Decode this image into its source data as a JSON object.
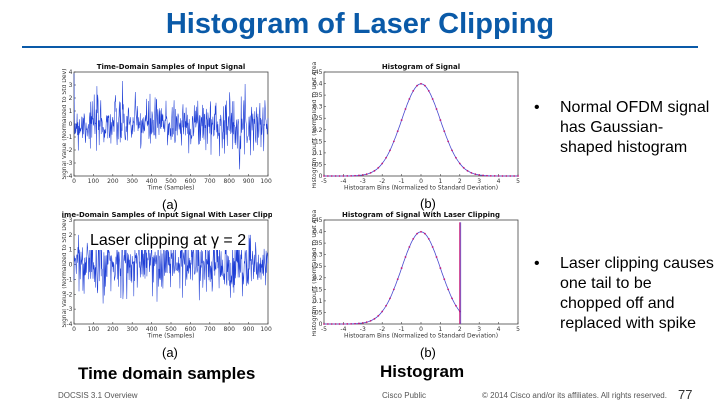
{
  "slide": {
    "title": "Histogram of Laser Clipping",
    "page_number": "77",
    "footer_left": "DOCSIS 3.1 Overview",
    "footer_center": "Cisco Public",
    "footer_right": "© 2014 Cisco and/or its affiliates. All rights reserved."
  },
  "labels": {
    "a_top": "(a)",
    "b_top": "(b)",
    "a_bottom": "(a)",
    "b_bottom": "(b)",
    "clipping_overlay": "Laser clipping at γ = 2",
    "caption_time": "Time domain samples",
    "caption_hist": "Histogram"
  },
  "bullets": [
    {
      "symbol": "•",
      "text": "Normal OFDM signal has Gaussian-shaped histogram"
    },
    {
      "symbol": "•",
      "text": "Laser clipping causes one tail to be chopped off and replaced with spike"
    }
  ],
  "chart_data": [
    {
      "type": "line",
      "title": "Time-Domain Samples of Input Signal",
      "xlabel": "Time (Samples)",
      "ylabel": "Signal Value (Normalized to Std Dev)",
      "xlim": [
        0,
        1000
      ],
      "ylim": [
        -4,
        4
      ],
      "x_ticks": [
        "0",
        "100",
        "200",
        "300",
        "400",
        "500",
        "600",
        "700",
        "800",
        "900",
        "1000"
      ],
      "y_ticks": [
        "-4",
        "-3",
        "-2",
        "-1",
        "0",
        "1",
        "2",
        "3",
        "4"
      ],
      "color": "#1f3fd6",
      "clip_at": null,
      "seed": 7
    },
    {
      "type": "line",
      "title": "Histogram of Signal",
      "xlabel": "Histogram Bins (Normalized to Standard Deviation)",
      "ylabel": "Histogram Count (Normalized to Unit Area)",
      "xlim": [
        -5,
        5
      ],
      "ylim": [
        0,
        0.45
      ],
      "x_ticks": [
        "-5",
        "-4",
        "-3",
        "-2",
        "-1",
        "0",
        "1",
        "2",
        "3",
        "4",
        "5"
      ],
      "y_ticks": [
        "0",
        "0.05",
        "0.1",
        "0.15",
        "0.2",
        "0.25",
        "0.3",
        "0.35",
        "0.4",
        "0.45"
      ],
      "color": "#c21a7a",
      "spike_at": null
    },
    {
      "type": "line",
      "title": "Time-Domain Samples of Input Signal With Laser Clipping",
      "xlabel": "Time (Samples)",
      "ylabel": "Signal Value (Normalized to Std Dev)",
      "xlim": [
        0,
        1000
      ],
      "ylim": [
        -4,
        3
      ],
      "x_ticks": [
        "0",
        "100",
        "200",
        "300",
        "400",
        "500",
        "600",
        "700",
        "800",
        "900",
        "1000"
      ],
      "y_ticks": [
        "-4",
        "-3",
        "-2",
        "-1",
        "0",
        "1",
        "2",
        "3"
      ],
      "color": "#1f3fd6",
      "clip_at": 2,
      "seed": 13
    },
    {
      "type": "line",
      "title": "Histogram of Signal With Laser Clipping",
      "xlabel": "Histogram Bins (Normalized to Standard Deviation)",
      "ylabel": "Histogram Count (Normalized to Unit Area)",
      "xlim": [
        -5,
        5
      ],
      "ylim": [
        0,
        0.45
      ],
      "x_ticks": [
        "-5",
        "-4",
        "-3",
        "-2",
        "-1",
        "0",
        "1",
        "2",
        "3",
        "4",
        "5"
      ],
      "y_ticks": [
        "0",
        "0.05",
        "0.1",
        "0.15",
        "0.2",
        "0.25",
        "0.3",
        "0.35",
        "0.4",
        "0.45"
      ],
      "color": "#c21a7a",
      "spike_at": 2
    }
  ]
}
